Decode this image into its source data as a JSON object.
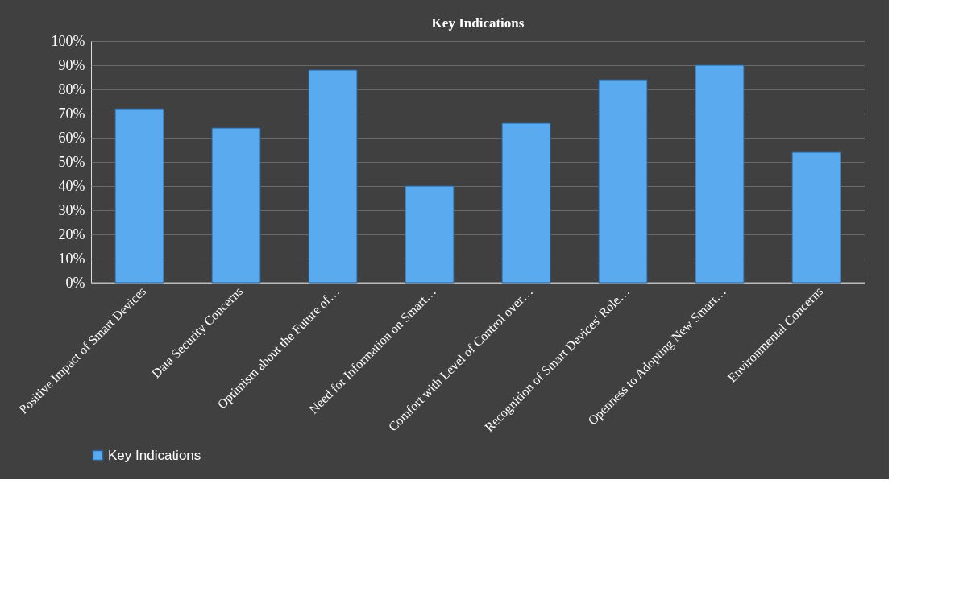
{
  "chart_data": {
    "type": "bar",
    "title": "Key Indications",
    "categories": [
      "Positive Impact of Smart Devices",
      "Data Security Concerns",
      "Optimism about the Future of…",
      "Need for Information on Smart…",
      "Comfort with Level of Control over…",
      "Recognition of Smart Devices' Role…",
      "Openness to Adopting New Smart…",
      "Environmental Concerns"
    ],
    "series": [
      {
        "name": "Key Indications",
        "color": "#5aaaf0",
        "values": [
          72,
          64,
          88,
          40,
          66,
          84,
          90,
          54
        ]
      }
    ],
    "ylim": [
      0,
      100
    ],
    "yticks": [
      {
        "value": 0,
        "label": "0%"
      },
      {
        "value": 10,
        "label": "10%"
      },
      {
        "value": 20,
        "label": "20%"
      },
      {
        "value": 30,
        "label": "30%"
      },
      {
        "value": 40,
        "label": "40%"
      },
      {
        "value": 50,
        "label": "50%"
      },
      {
        "value": 60,
        "label": "60%"
      },
      {
        "value": 70,
        "label": "70%"
      },
      {
        "value": 80,
        "label": "80%"
      },
      {
        "value": 90,
        "label": "90%"
      },
      {
        "value": 100,
        "label": "100%"
      }
    ],
    "grid": "y",
    "legend": "bottom"
  }
}
